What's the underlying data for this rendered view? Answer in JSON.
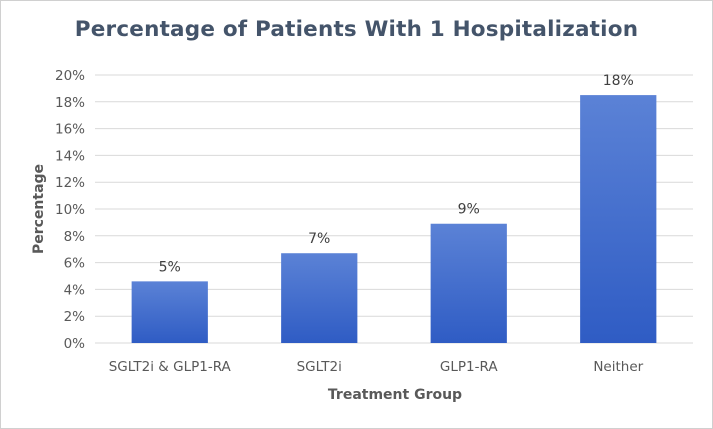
{
  "chart_data": {
    "type": "bar",
    "title": "Percentage of Patients With 1 Hospitalization",
    "xlabel": "Treatment Group",
    "ylabel": "Percentage",
    "categories": [
      "SGLT2i & GLP1-RA",
      "SGLT2i",
      "GLP1-RA",
      "Neither"
    ],
    "values": [
      4.6,
      6.7,
      8.9,
      18.5
    ],
    "data_labels": [
      "5%",
      "7%",
      "9%",
      "18%"
    ],
    "ylim": [
      0,
      20
    ],
    "yticks": [
      "0%",
      "2%",
      "4%",
      "6%",
      "8%",
      "10%",
      "12%",
      "14%",
      "16%",
      "18%",
      "20%"
    ],
    "grid": true,
    "legend": "none",
    "colors": {
      "bar_top": "#5b82d6",
      "bar_bottom": "#2f5cc4",
      "grid": "#d9d9d9",
      "title": "#44546a"
    }
  }
}
